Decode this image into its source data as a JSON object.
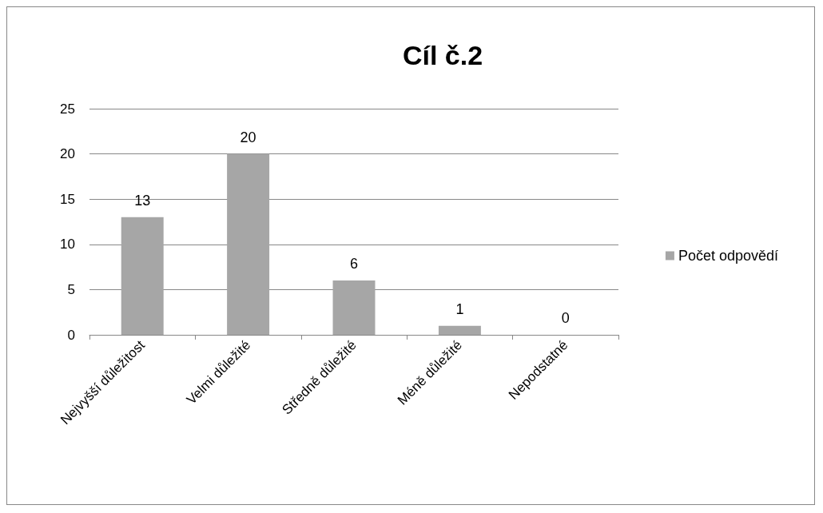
{
  "chart_data": {
    "type": "bar",
    "title": "Cíl č.2",
    "categories": [
      "Nejvyšší důležitost",
      "Velmi důležité",
      "Středně důležité",
      "Méně důležité",
      "Nepodstatné"
    ],
    "series": [
      {
        "name": "Počet odpovědí",
        "color": "#a6a6a6",
        "values": [
          13,
          20,
          6,
          1,
          0
        ]
      }
    ],
    "ylim": [
      0,
      25
    ],
    "yticks": [
      0,
      5,
      10,
      15,
      20,
      25
    ],
    "grid": "y",
    "legend": "right",
    "data_labels": true
  }
}
